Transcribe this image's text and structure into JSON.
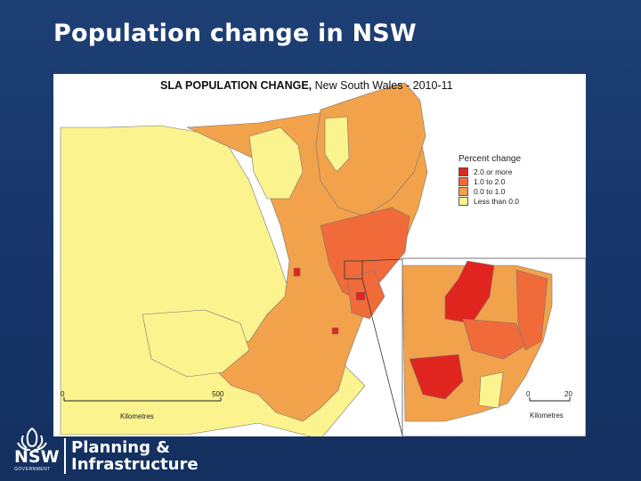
{
  "slide_title": "Population change in NSW",
  "map": {
    "title_bold": "SLA POPULATION CHANGE,",
    "title_rest": " New South Wales - 2010-11",
    "legend_title": "Percent change",
    "legend_items": [
      {
        "label": "2.0 or more",
        "color": "#e0251f"
      },
      {
        "label": "1.0 to 2.0",
        "color": "#f06a3a"
      },
      {
        "label": "0.0 to 1.0",
        "color": "#f2a24a"
      },
      {
        "label": "Less than 0.0",
        "color": "#fbf38d"
      }
    ],
    "main_scale": {
      "start": "0",
      "end": "500",
      "unit": "Kilometres"
    },
    "inset_scale": {
      "start": "0",
      "end": "20",
      "unit": "Kilometres"
    }
  },
  "footer": {
    "logo_word": "NSW",
    "logo_sub": "GOVERNMENT",
    "dept_line1": "Planning &",
    "dept_line2": "Infrastructure"
  }
}
